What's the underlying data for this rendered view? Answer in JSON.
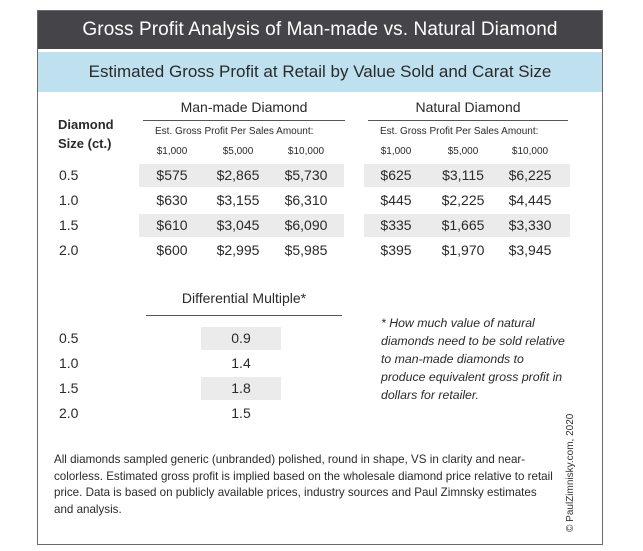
{
  "title": "Gross Profit Analysis of Man-made vs. Natural Diamond",
  "subtitle": "Estimated Gross Profit at Retail by Value Sold and Carat Size",
  "size_header": "Diamond Size (ct.)",
  "groups": [
    {
      "name": "Man-made Diamond",
      "sub_header": "Est. Gross Profit Per Sales Amount:",
      "columns": [
        "$1,000",
        "$5,000",
        "$10,000"
      ]
    },
    {
      "name": "Natural Diamond",
      "sub_header": "Est. Gross Profit Per Sales Amount:",
      "columns": [
        "$1,000",
        "$5,000",
        "$10,000"
      ]
    }
  ],
  "rows": [
    {
      "size": "0.5",
      "man_made": [
        "$575",
        "$2,865",
        "$5,730"
      ],
      "natural": [
        "$625",
        "$3,115",
        "$6,225"
      ]
    },
    {
      "size": "1.0",
      "man_made": [
        "$630",
        "$3,155",
        "$6,310"
      ],
      "natural": [
        "$445",
        "$2,225",
        "$4,445"
      ]
    },
    {
      "size": "1.5",
      "man_made": [
        "$610",
        "$3,045",
        "$6,090"
      ],
      "natural": [
        "$335",
        "$1,665",
        "$3,330"
      ]
    },
    {
      "size": "2.0",
      "man_made": [
        "$600",
        "$2,995",
        "$5,985"
      ],
      "natural": [
        "$395",
        "$1,970",
        "$3,945"
      ]
    }
  ],
  "differential": {
    "title": "Differential Multiple*",
    "rows": [
      {
        "size": "0.5",
        "value": "0.9"
      },
      {
        "size": "1.0",
        "value": "1.4"
      },
      {
        "size": "1.5",
        "value": "1.8"
      },
      {
        "size": "2.0",
        "value": "1.5"
      }
    ]
  },
  "note": "* How much value of natural diamonds need to be sold relative to man-made diamonds to produce equivalent gross profit in dollars for retailer.",
  "footnote": "All diamonds sampled generic (unbranded) polished, round in shape, VS in clarity and near-colorless. Estimated gross profit is implied based on the wholesale diamond price relative to retail price. Data is based on publicly available prices, industry sources and Paul Zimnsky estimates and analysis.",
  "credit": "© PaulZimnisky.com, 2020"
}
